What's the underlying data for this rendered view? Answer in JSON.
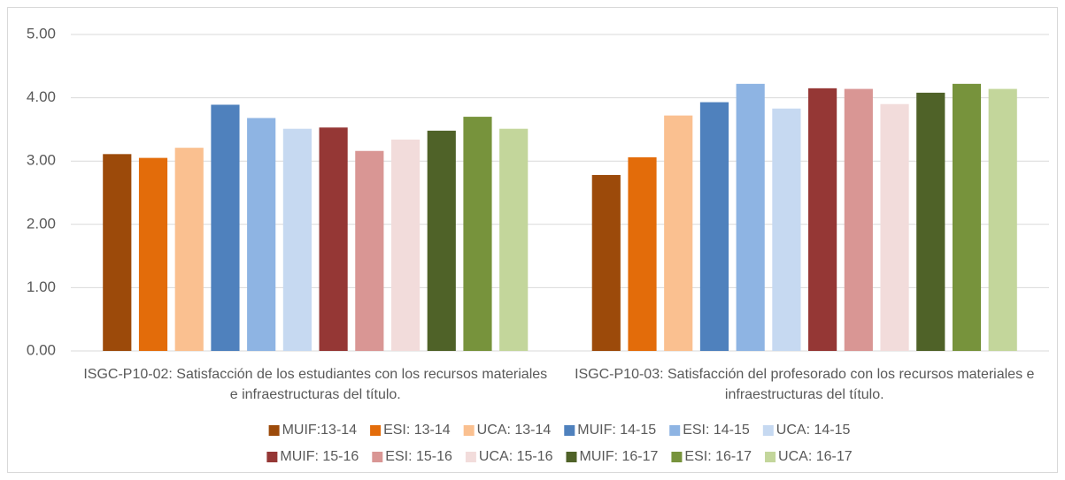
{
  "chart_data": {
    "type": "bar",
    "categories": [
      "ISGC-P10-02: Satisfacción de los estudiantes con los recursos materiales e infraestructuras del título.",
      "ISGC-P10-03: Satisfacción del profesorado con los recursos materiales e infraestructuras del título."
    ],
    "series": [
      {
        "name": "MUIF:13-14",
        "color": "#9c4a0a",
        "values": [
          3.11,
          2.78
        ]
      },
      {
        "name": "ESI: 13-14",
        "color": "#e36c0a",
        "values": [
          3.05,
          3.06
        ]
      },
      {
        "name": "UCA: 13-14",
        "color": "#fac090",
        "values": [
          3.21,
          3.72
        ]
      },
      {
        "name": "MUIF: 14-15",
        "color": "#4f81bd",
        "values": [
          3.89,
          3.93
        ]
      },
      {
        "name": "ESI: 14-15",
        "color": "#8eb4e3",
        "values": [
          3.68,
          4.22
        ]
      },
      {
        "name": "UCA: 14-15",
        "color": "#c6d9f1",
        "values": [
          3.51,
          3.83
        ]
      },
      {
        "name": "MUIF: 15-16",
        "color": "#953735",
        "values": [
          3.53,
          4.15
        ]
      },
      {
        "name": "ESI: 15-16",
        "color": "#d99694",
        "values": [
          3.16,
          4.14
        ]
      },
      {
        "name": "UCA: 15-16",
        "color": "#f2dcdb",
        "values": [
          3.34,
          3.9
        ]
      },
      {
        "name": "MUIF: 16-17",
        "color": "#4f6228",
        "values": [
          3.48,
          4.08
        ]
      },
      {
        "name": "ESI: 16-17",
        "color": "#77933c",
        "values": [
          3.7,
          4.22
        ]
      },
      {
        "name": "UCA: 16-17",
        "color": "#c3d69b",
        "values": [
          3.51,
          4.14
        ]
      }
    ],
    "ylim": [
      0,
      5
    ],
    "yticks": [
      {
        "value": 0,
        "label": "0.00"
      },
      {
        "value": 1,
        "label": "1.00"
      },
      {
        "value": 2,
        "label": "2.00"
      },
      {
        "value": 3,
        "label": "3.00"
      },
      {
        "value": 4,
        "label": "4.00"
      },
      {
        "value": 5,
        "label": "5.00"
      }
    ],
    "grid": true,
    "legend": "bottom"
  }
}
